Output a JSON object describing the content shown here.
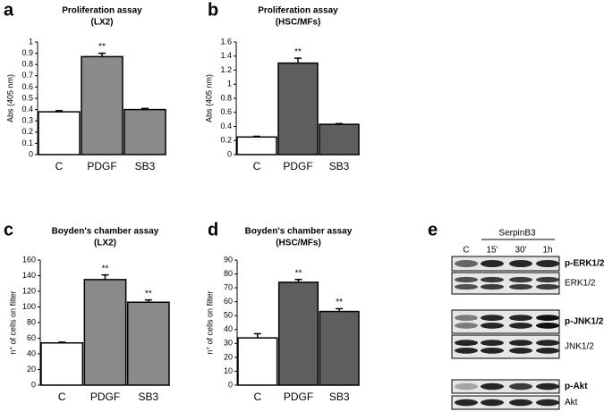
{
  "chart_data": [
    {
      "type": "bar",
      "panel": "a",
      "title": "Proliferation assay",
      "subtitle": "(LX2)",
      "y_label": "Abs (405 nm)",
      "categories": [
        "C",
        "PDGF",
        "SB3"
      ],
      "values": [
        0.38,
        0.87,
        0.4
      ],
      "errors": [
        0.01,
        0.03,
        0.01
      ],
      "colors": [
        "#ffffff",
        "#8a8a8a",
        "#8a8a8a"
      ],
      "annotations": [
        null,
        "**",
        null
      ],
      "ylim": [
        0,
        1
      ],
      "yticks": [
        0,
        0.1,
        0.2,
        0.3,
        0.4,
        0.5,
        0.6,
        0.7,
        0.8,
        0.9,
        1
      ]
    },
    {
      "type": "bar",
      "panel": "b",
      "title": "Proliferation assay",
      "subtitle": "(HSC/MFs)",
      "y_label": "Abs (405 nm)",
      "categories": [
        "C",
        "PDGF",
        "SB3"
      ],
      "values": [
        0.25,
        1.3,
        0.43
      ],
      "errors": [
        0.01,
        0.07,
        0.01
      ],
      "colors": [
        "#ffffff",
        "#5e5e5e",
        "#5e5e5e"
      ],
      "annotations": [
        null,
        "**",
        null
      ],
      "ylim": [
        0,
        1.6
      ],
      "yticks": [
        0,
        0.2,
        0.4,
        0.6,
        0.8,
        1,
        1.2,
        1.4,
        1.6
      ]
    },
    {
      "type": "bar",
      "panel": "c",
      "title": "Boyden's chamber assay",
      "subtitle": "(LX2)",
      "y_label": "n° of cells on filter",
      "categories": [
        "C",
        "PDGF",
        "SB3"
      ],
      "values": [
        54,
        135,
        106
      ],
      "errors": [
        1,
        6,
        3
      ],
      "colors": [
        "#ffffff",
        "#8a8a8a",
        "#8a8a8a"
      ],
      "annotations": [
        null,
        "**",
        "**"
      ],
      "ylim": [
        0,
        160
      ],
      "yticks": [
        0,
        20,
        40,
        60,
        80,
        100,
        120,
        140,
        160
      ]
    },
    {
      "type": "bar",
      "panel": "d",
      "title": "Boyden's chamber assay",
      "subtitle": "(HSC/MFs)",
      "y_label": "n° of cells on filter",
      "categories": [
        "C",
        "PDGF",
        "SB3"
      ],
      "values": [
        34,
        74,
        53
      ],
      "errors": [
        3,
        2,
        2
      ],
      "colors": [
        "#ffffff",
        "#5e5e5e",
        "#5e5e5e"
      ],
      "annotations": [
        null,
        "**",
        "**"
      ],
      "ylim": [
        0,
        90
      ],
      "yticks": [
        0,
        10,
        20,
        30,
        40,
        50,
        60,
        70,
        80,
        90
      ]
    }
  ],
  "blot": {
    "panel": "e",
    "treatment": "SerpinB3",
    "lanes": [
      "C",
      "15'",
      "30'",
      "1h"
    ],
    "rows": [
      "p-ERK1/2",
      "ERK1/2",
      "p-JNK1/2",
      "JNK1/2",
      "p-Akt",
      "Akt"
    ]
  }
}
